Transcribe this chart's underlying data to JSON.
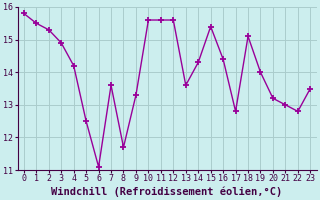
{
  "x": [
    0,
    1,
    2,
    3,
    4,
    5,
    6,
    7,
    8,
    9,
    10,
    11,
    12,
    13,
    14,
    15,
    16,
    17,
    18,
    19,
    20,
    21,
    22,
    23
  ],
  "y": [
    15.8,
    15.5,
    15.3,
    14.9,
    14.2,
    12.5,
    11.1,
    13.6,
    11.7,
    13.3,
    15.6,
    15.6,
    15.6,
    13.6,
    14.3,
    15.4,
    14.4,
    12.8,
    15.1,
    14.0,
    13.2,
    13.0,
    12.8,
    13.5
  ],
  "line_color": "#990099",
  "marker": "+",
  "markersize": 5,
  "linewidth": 1.0,
  "markeredgewidth": 1.3,
  "xlabel": "Windchill (Refroidissement éolien,°C)",
  "xlabel_fontsize": 7.5,
  "bg_color": "#cceeee",
  "grid_color": "#aacccc",
  "ylim": [
    11,
    16
  ],
  "xlim": [
    -0.5,
    23.5
  ],
  "yticks": [
    11,
    12,
    13,
    14,
    15,
    16
  ],
  "xticks": [
    0,
    1,
    2,
    3,
    4,
    5,
    6,
    7,
    8,
    9,
    10,
    11,
    12,
    13,
    14,
    15,
    16,
    17,
    18,
    19,
    20,
    21,
    22,
    23
  ],
  "tick_fontsize": 6.0,
  "xlabel_color": "#440044",
  "tick_color": "#440044",
  "spine_color": "#440044"
}
